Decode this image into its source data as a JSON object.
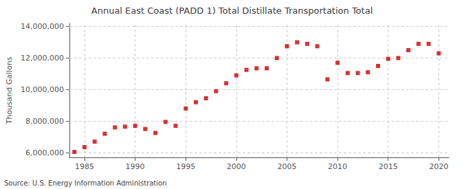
{
  "chart_data": {
    "type": "scatter",
    "title": "Annual East Coast (PADD 1) Total Distillate Transportation Total",
    "ylabel": "Thousand Gallons",
    "source": "Source: U.S. Energy Information Administration",
    "color": "#cc0000",
    "marker": "square",
    "grid": true,
    "x": [
      1984,
      1985,
      1986,
      1987,
      1988,
      1989,
      1990,
      1991,
      1992,
      1993,
      1994,
      1995,
      1996,
      1997,
      1998,
      1999,
      2000,
      2001,
      2002,
      2003,
      2004,
      2005,
      2006,
      2007,
      2008,
      2009,
      2010,
      2011,
      2012,
      2013,
      2014,
      2015,
      2016,
      2017,
      2018,
      2019,
      2020
    ],
    "values": [
      6050000,
      6350000,
      6700000,
      7200000,
      7600000,
      7650000,
      7700000,
      7500000,
      7250000,
      7950000,
      7700000,
      8800000,
      9200000,
      9450000,
      9900000,
      10400000,
      10900000,
      11250000,
      11350000,
      11350000,
      12000000,
      12750000,
      13000000,
      12900000,
      12750000,
      10650000,
      11700000,
      11050000,
      11050000,
      11100000,
      11500000,
      11950000,
      12000000,
      12500000,
      12900000,
      12900000,
      12300000
    ],
    "xlim": [
      1983.5,
      2021
    ],
    "xticks": [
      1985,
      1990,
      1995,
      2000,
      2005,
      2010,
      2015,
      2020
    ],
    "ylim": [
      5700000,
      14200000
    ],
    "yticks": [
      {
        "value": 6000000,
        "label": "6,000,000"
      },
      {
        "value": 8000000,
        "label": "8,000,000"
      },
      {
        "value": 10000000,
        "label": "10,000,000"
      },
      {
        "value": 12000000,
        "label": "12,000,000"
      },
      {
        "value": 14000000,
        "label": "14,000,000"
      }
    ]
  }
}
